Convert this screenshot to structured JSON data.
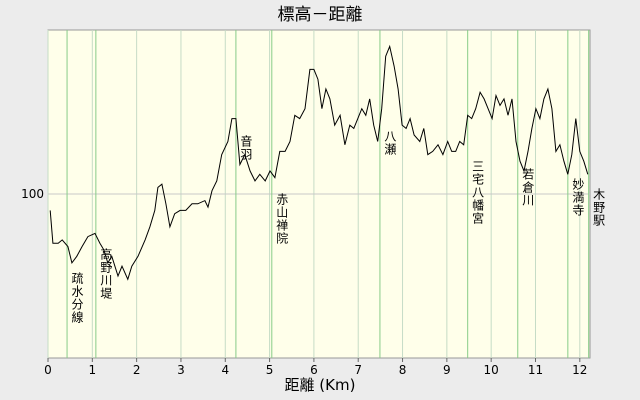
{
  "chart_data": {
    "type": "line",
    "title": "標高－距離",
    "x_label": "距離 (Km)",
    "xlim": [
      0,
      12.23
    ],
    "xticks": [
      0,
      1,
      2,
      3,
      4,
      5,
      6,
      7,
      8,
      9,
      10,
      11,
      12
    ],
    "ylim": [
      50,
      150
    ],
    "yticks": [
      100
    ],
    "grid": true,
    "series": [
      {
        "color": "#000000",
        "x": [
          0.05,
          0.11,
          0.23,
          0.32,
          0.45,
          0.54,
          0.65,
          0.77,
          0.9,
          1.06,
          1.17,
          1.26,
          1.35,
          1.44,
          1.58,
          1.67,
          1.8,
          1.89,
          2.03,
          2.19,
          2.3,
          2.41,
          2.48,
          2.57,
          2.66,
          2.75,
          2.86,
          2.98,
          3.11,
          3.25,
          3.38,
          3.54,
          3.61,
          3.7,
          3.81,
          3.92,
          4.06,
          4.15,
          4.24,
          4.33,
          4.44,
          4.56,
          4.67,
          4.78,
          4.9,
          5.01,
          5.12,
          5.23,
          5.35,
          5.46,
          5.57,
          5.68,
          5.8,
          5.91,
          6.0,
          6.09,
          6.18,
          6.27,
          6.36,
          6.47,
          6.59,
          6.7,
          6.81,
          6.9,
          6.99,
          7.08,
          7.17,
          7.26,
          7.35,
          7.44,
          7.53,
          7.62,
          7.71,
          7.81,
          7.9,
          7.99,
          8.08,
          8.17,
          8.26,
          8.39,
          8.48,
          8.57,
          8.68,
          8.8,
          8.91,
          9.02,
          9.11,
          9.2,
          9.29,
          9.38,
          9.47,
          9.56,
          9.65,
          9.75,
          9.84,
          9.93,
          10.02,
          10.11,
          10.2,
          10.29,
          10.38,
          10.47,
          10.56,
          10.65,
          10.74,
          10.83,
          10.92,
          11.01,
          11.1,
          11.19,
          11.28,
          11.37,
          11.46,
          11.55,
          11.64,
          11.73,
          11.82,
          11.91,
          12.0,
          12.09,
          12.18
        ],
        "values": [
          95,
          85,
          85,
          86,
          84,
          79,
          81,
          84,
          87,
          88,
          85,
          83,
          79,
          81,
          75,
          78,
          74,
          78,
          81,
          86,
          90,
          95,
          102,
          103,
          97,
          90,
          94,
          95,
          95,
          97,
          97,
          98,
          96,
          101,
          104,
          112,
          116,
          123,
          123,
          109,
          112,
          107,
          104,
          106,
          104,
          107,
          105,
          113,
          113,
          116,
          124,
          123,
          126,
          138,
          138,
          135,
          126,
          132,
          129,
          121,
          124,
          115,
          121,
          120,
          123,
          126,
          124,
          129,
          121,
          116,
          126,
          142,
          145,
          139,
          132,
          121,
          120,
          123,
          118,
          116,
          120,
          112,
          113,
          115,
          112,
          116,
          113,
          113,
          116,
          115,
          124,
          123,
          126,
          131,
          129,
          126,
          123,
          130,
          127,
          129,
          124,
          129,
          116,
          110,
          107,
          113,
          120,
          126,
          123,
          129,
          132,
          126,
          113,
          115,
          110,
          106,
          112,
          123,
          113,
          110,
          106
        ]
      }
    ],
    "annotations": [
      {
        "label": "疏水分線",
        "x": 0.43
      },
      {
        "label": "高野川堤",
        "x": 1.08
      },
      {
        "label": "音羽",
        "x": 4.24
      },
      {
        "label": "赤山禅院",
        "x": 5.05
      },
      {
        "label": "八瀬",
        "x": 7.49
      },
      {
        "label": "三宅八幡宮",
        "x": 9.47
      },
      {
        "label": "若倉川",
        "x": 10.6
      },
      {
        "label": "妙満寺",
        "x": 11.73
      },
      {
        "label": "木野駅",
        "x": 12.2
      }
    ]
  }
}
